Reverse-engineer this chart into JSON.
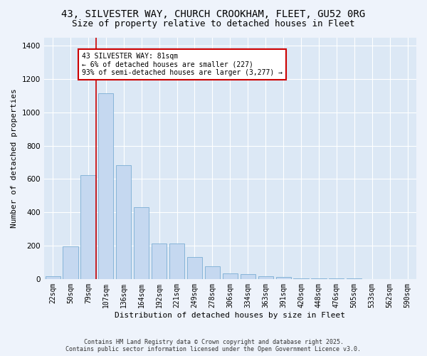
{
  "title_line1": "43, SILVESTER WAY, CHURCH CROOKHAM, FLEET, GU52 0RG",
  "title_line2": "Size of property relative to detached houses in Fleet",
  "xlabel": "Distribution of detached houses by size in Fleet",
  "ylabel": "Number of detached properties",
  "categories": [
    "22sqm",
    "50sqm",
    "79sqm",
    "107sqm",
    "136sqm",
    "164sqm",
    "192sqm",
    "221sqm",
    "249sqm",
    "278sqm",
    "306sqm",
    "334sqm",
    "363sqm",
    "391sqm",
    "420sqm",
    "448sqm",
    "476sqm",
    "505sqm",
    "533sqm",
    "562sqm",
    "590sqm"
  ],
  "values": [
    15,
    195,
    625,
    1115,
    685,
    430,
    215,
    215,
    130,
    75,
    35,
    30,
    15,
    12,
    5,
    5,
    2,
    2,
    1,
    0,
    0
  ],
  "bar_color": "#c5d8f0",
  "bar_edge_color": "#7badd4",
  "red_line_index": 2,
  "red_line_color": "#cc0000",
  "annotation_text": "43 SILVESTER WAY: 81sqm\n← 6% of detached houses are smaller (227)\n93% of semi-detached houses are larger (3,277) →",
  "annotation_box_facecolor": "#ffffff",
  "annotation_box_edgecolor": "#cc0000",
  "ylim": [
    0,
    1450
  ],
  "plot_bg_color": "#dce8f5",
  "fig_bg_color": "#eef3fb",
  "footer_text": "Contains HM Land Registry data © Crown copyright and database right 2025.\nContains public sector information licensed under the Open Government Licence v3.0.",
  "grid_color": "#ffffff",
  "title_fontsize": 10,
  "subtitle_fontsize": 9,
  "axis_label_fontsize": 8,
  "tick_fontsize": 7,
  "annotation_fontsize": 7,
  "footer_fontsize": 6
}
